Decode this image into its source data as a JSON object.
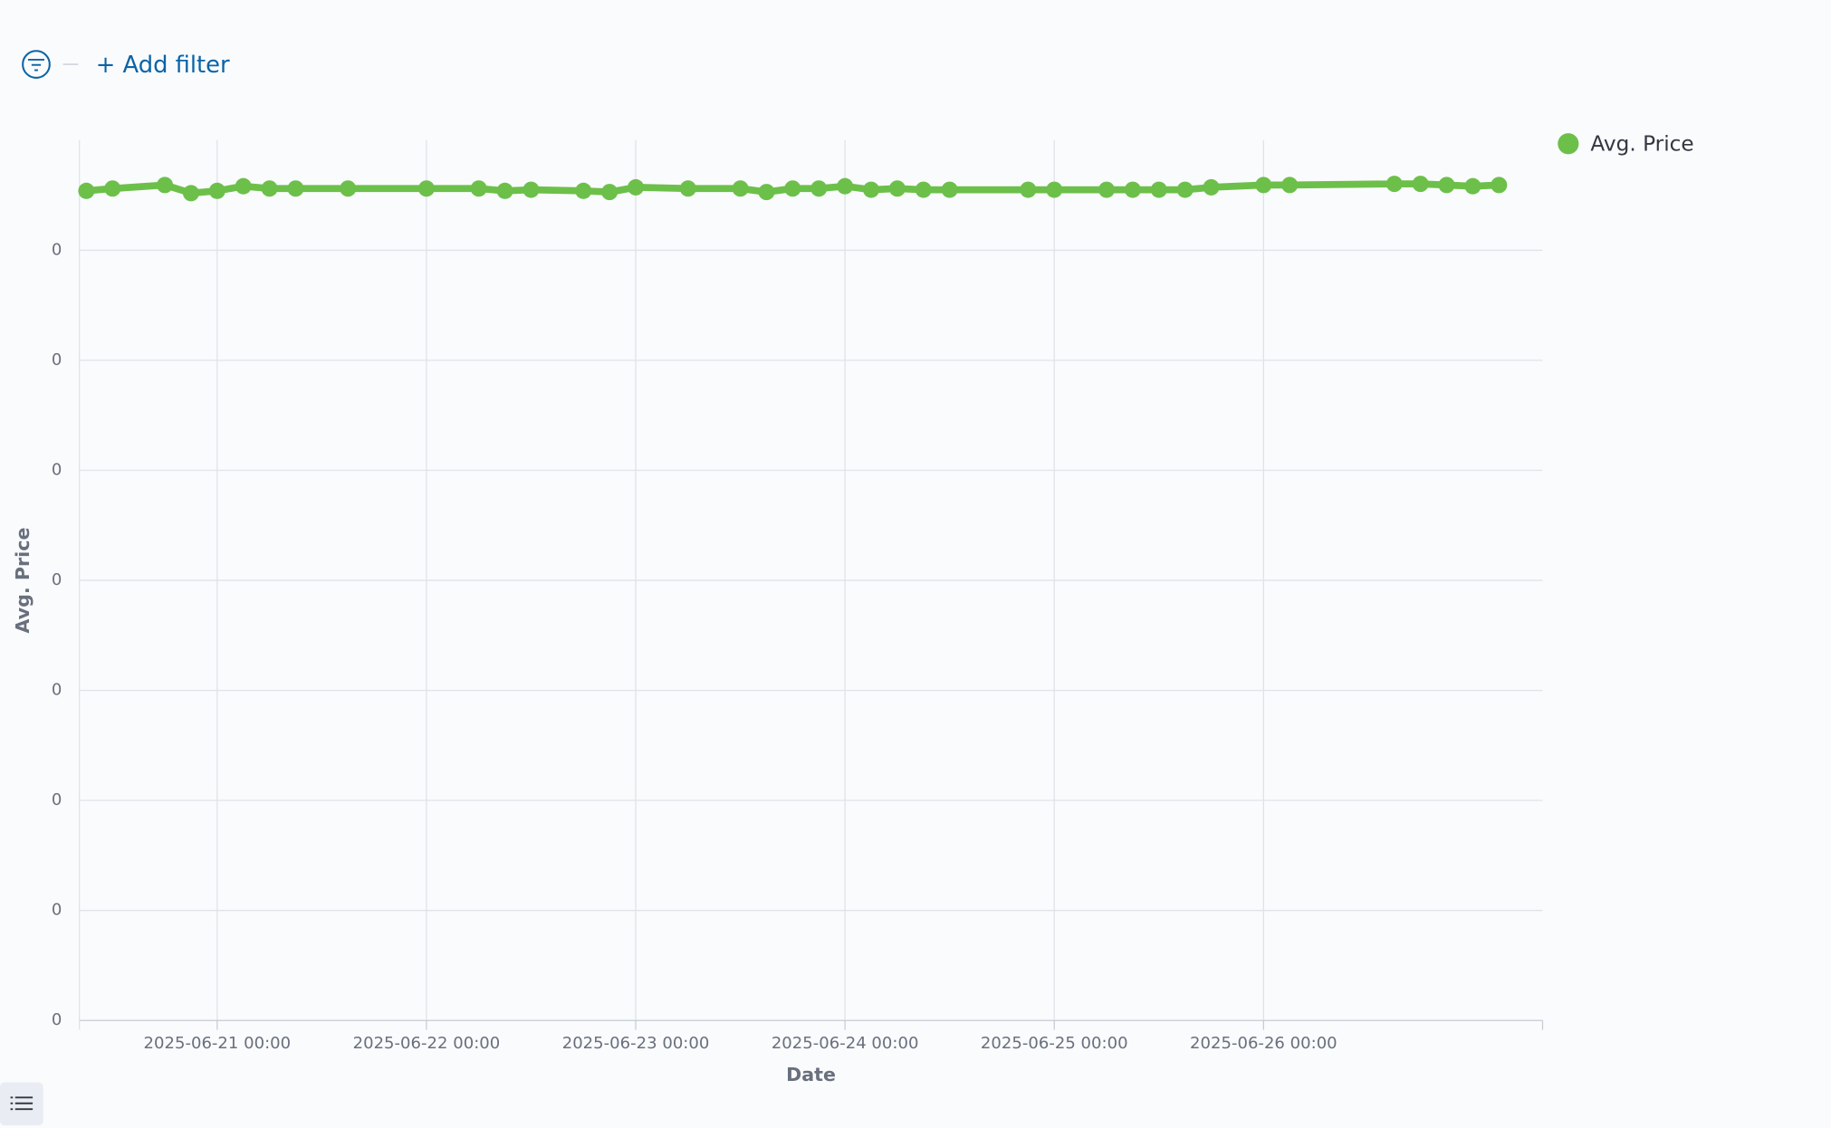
{
  "filter_bar": {
    "add_filter": "+ Add filter"
  },
  "chart_data": {
    "type": "line",
    "x_label": "Date",
    "y_label": "Avg. Price",
    "x": [
      "2025-06-20 09:00",
      "2025-06-20 12:00",
      "2025-06-20 18:00",
      "2025-06-20 21:00",
      "2025-06-21 00:00",
      "2025-06-21 03:00",
      "2025-06-21 06:00",
      "2025-06-21 09:00",
      "2025-06-21 15:00",
      "2025-06-22 00:00",
      "2025-06-22 06:00",
      "2025-06-22 09:00",
      "2025-06-22 12:00",
      "2025-06-22 18:00",
      "2025-06-22 21:00",
      "2025-06-23 00:00",
      "2025-06-23 06:00",
      "2025-06-23 12:00",
      "2025-06-23 15:00",
      "2025-06-23 18:00",
      "2025-06-23 21:00",
      "2025-06-24 00:00",
      "2025-06-24 03:00",
      "2025-06-24 06:00",
      "2025-06-24 09:00",
      "2025-06-24 12:00",
      "2025-06-24 21:00",
      "2025-06-25 00:00",
      "2025-06-25 06:00",
      "2025-06-25 09:00",
      "2025-06-25 12:00",
      "2025-06-25 15:00",
      "2025-06-25 18:00",
      "2025-06-26 00:00",
      "2025-06-26 03:00",
      "2025-06-26 15:00",
      "2025-06-26 18:00",
      "2025-06-26 21:00",
      "2025-06-27 00:00",
      "2025-06-27 03:00"
    ],
    "series": [
      {
        "name": "Avg. Price",
        "color": "#6cc04a",
        "values": [
          0.000754,
          0.0007561,
          0.0007593,
          0.0007519,
          0.000754,
          0.0007582,
          0.0007561,
          0.0007561,
          0.0007561,
          0.0007561,
          0.0007561,
          0.000754,
          0.000755,
          0.000754,
          0.0007529,
          0.0007572,
          0.0007561,
          0.0007561,
          0.0007529,
          0.0007561,
          0.0007561,
          0.0007582,
          0.000755,
          0.0007561,
          0.000755,
          0.000755,
          0.000755,
          0.000755,
          0.000755,
          0.000755,
          0.000755,
          0.000755,
          0.0007572,
          0.0007593,
          0.0007593,
          0.0007603,
          0.0007603,
          0.0007593,
          0.0007582,
          0.0007593
        ]
      }
    ],
    "xlim": [
      "2025-06-20 08:12",
      "2025-06-27 08:00"
    ],
    "xticks": [
      "2025-06-21 00:00",
      "2025-06-22 00:00",
      "2025-06-23 00:00",
      "2025-06-24 00:00",
      "2025-06-25 00:00",
      "2025-06-26 00:00"
    ],
    "ylim": [
      0,
      0.0008
    ],
    "yticks": [
      {
        "value": 0,
        "label": "0"
      },
      {
        "value": 0.0001,
        "label": "0"
      },
      {
        "value": 0.0002,
        "label": "0"
      },
      {
        "value": 0.0003,
        "label": "0"
      },
      {
        "value": 0.0004,
        "label": "0"
      },
      {
        "value": 0.0005,
        "label": "0"
      },
      {
        "value": 0.0006,
        "label": "0"
      },
      {
        "value": 0.0007,
        "label": "0"
      }
    ],
    "grid": true,
    "legend": "right"
  }
}
